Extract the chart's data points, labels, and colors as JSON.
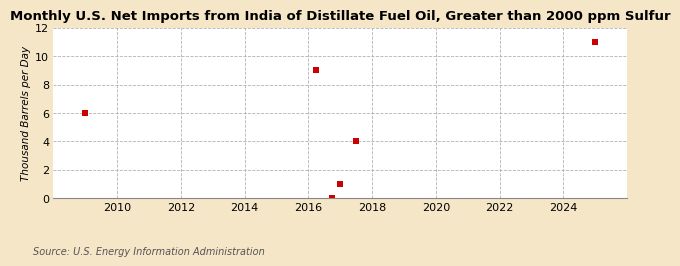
{
  "title": "Monthly U.S. Net Imports from India of Distillate Fuel Oil, Greater than 2000 ppm Sulfur",
  "ylabel": "Thousand Barrels per Day",
  "source": "Source: U.S. Energy Information Administration",
  "background_color": "#f5e6c8",
  "plot_background_color": "#ffffff",
  "data_x": [
    2009.0,
    2016.25,
    2016.75,
    2017.0,
    2017.5,
    2025.0
  ],
  "data_y": [
    6,
    9,
    0,
    1,
    4,
    11
  ],
  "marker_color": "#cc0000",
  "marker_size": 4,
  "xlim": [
    2008.0,
    2026.0
  ],
  "ylim": [
    0,
    12
  ],
  "xticks": [
    2010,
    2012,
    2014,
    2016,
    2018,
    2020,
    2022,
    2024
  ],
  "yticks": [
    0,
    2,
    4,
    6,
    8,
    10,
    12
  ],
  "grid_color": "#aaaaaa",
  "title_fontsize": 9.5,
  "axis_fontsize": 8,
  "ylabel_fontsize": 7.5,
  "source_fontsize": 7
}
